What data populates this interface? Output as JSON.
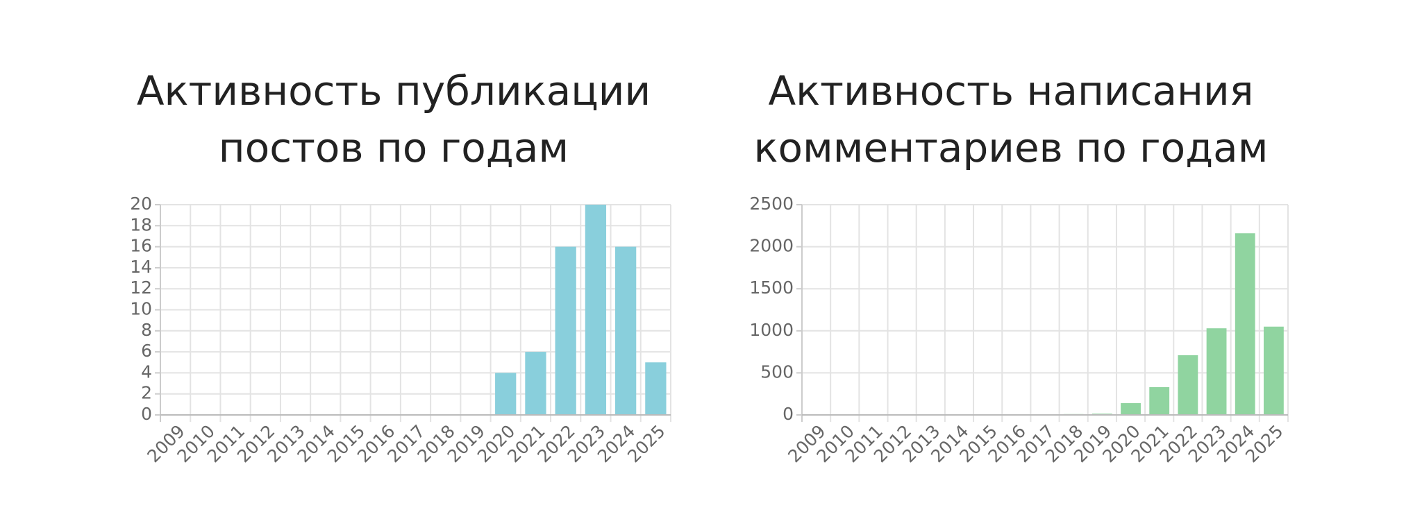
{
  "chart_data": [
    {
      "type": "bar",
      "title": [
        "Активность публикации",
        "постов по годам"
      ],
      "categories": [
        "2009",
        "2010",
        "2011",
        "2012",
        "2013",
        "2014",
        "2015",
        "2016",
        "2017",
        "2018",
        "2019",
        "2020",
        "2021",
        "2022",
        "2023",
        "2024",
        "2025"
      ],
      "values": [
        0,
        0,
        0,
        0,
        0,
        0,
        0,
        0,
        0,
        0,
        0,
        4,
        6,
        16,
        20,
        16,
        5
      ],
      "color": "#89cfdc",
      "ylim": [
        0,
        20
      ],
      "yticks": [
        0,
        2,
        4,
        6,
        8,
        10,
        12,
        14,
        16,
        18,
        20
      ],
      "grid": true
    },
    {
      "type": "bar",
      "title": [
        "Активность написания",
        "комментариев по годам"
      ],
      "categories": [
        "2009",
        "2010",
        "2011",
        "2012",
        "2013",
        "2014",
        "2015",
        "2016",
        "2017",
        "2018",
        "2019",
        "2020",
        "2021",
        "2022",
        "2023",
        "2024",
        "2025"
      ],
      "values": [
        0,
        0,
        0,
        0,
        0,
        0,
        0,
        0,
        5,
        10,
        15,
        140,
        330,
        710,
        1030,
        2160,
        1050
      ],
      "color": "#90d4a0",
      "ylim": [
        0,
        2500
      ],
      "yticks": [
        0,
        500,
        1000,
        1500,
        2000,
        2500
      ],
      "grid": true
    }
  ]
}
